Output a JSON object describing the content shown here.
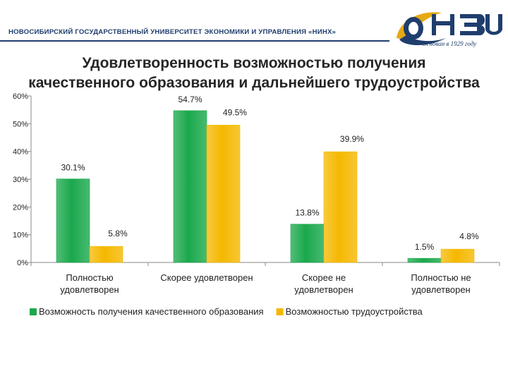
{
  "header": {
    "university_name": "НОВОСИБИРСКИЙ ГОСУДАРСТВЕННЫЙ УНИВЕРСИТЕТ ЭКОНОМИКИ И УПРАВЛЕНИЯ «НИНХ»",
    "slogan": "Основан в 1929 году"
  },
  "colors": {
    "series_1": "#1aa84c",
    "series_2": "#f5b800",
    "navy": "#1f3e6e",
    "gold": "#e6a817"
  },
  "chart_data": {
    "type": "bar",
    "title_line1": "Удовлетворенность возможностью получения",
    "title_line2": "качественного образования и дальнейшего трудоустройства",
    "categories": [
      [
        "Полностью",
        "удовлетворен"
      ],
      [
        "Скорее удовлетворен"
      ],
      [
        "Скорее не",
        "удовлетворен"
      ],
      [
        "Полностью не",
        "удовлетворен"
      ]
    ],
    "series": [
      {
        "name": "Возможность получения качественного образования",
        "values": [
          30.1,
          54.7,
          13.8,
          1.5
        ],
        "labels": [
          "30.1%",
          "54.7%",
          "13.8%",
          "1.5%"
        ]
      },
      {
        "name": "Возможностью трудоустройства",
        "values": [
          5.8,
          49.5,
          39.9,
          4.8
        ],
        "labels": [
          "5.8%",
          "49.5%",
          "39.9%",
          "4.8%"
        ]
      }
    ],
    "ylim": [
      0,
      60
    ],
    "yticks": [
      "0%",
      "10%",
      "20%",
      "30%",
      "40%",
      "50%",
      "60%"
    ],
    "grid": false,
    "legend_position": "bottom"
  }
}
